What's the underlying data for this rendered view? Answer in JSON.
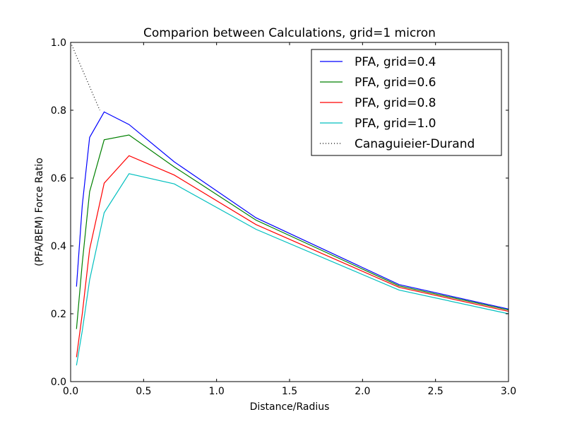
{
  "chart_data": {
    "type": "line",
    "title": "Comparion between Calculations, grid=1 micron",
    "xlabel": "Distance/Radius",
    "ylabel": "(PFA/BEM) Force Ratio",
    "xlim": [
      0.0,
      3.0
    ],
    "ylim": [
      0.0,
      1.0
    ],
    "xticks": [
      0.0,
      0.5,
      1.0,
      1.5,
      2.0,
      2.5,
      3.0
    ],
    "xtick_labels": [
      "0.0",
      "0.5",
      "1.0",
      "1.5",
      "2.0",
      "2.5",
      "3.0"
    ],
    "yticks": [
      0.0,
      0.2,
      0.4,
      0.6,
      0.8,
      1.0
    ],
    "ytick_labels": [
      "0.0",
      "0.2",
      "0.4",
      "0.6",
      "0.8",
      "1.0"
    ],
    "grid": false,
    "legend_position": "top-right",
    "series": [
      {
        "name": "PFA, grid=0.4",
        "color": "#0000ff",
        "style": "solid",
        "x": [
          0.04,
          0.08,
          0.13,
          0.23,
          0.4,
          0.71,
          1.27,
          2.25,
          3.0
        ],
        "y": [
          0.28,
          0.52,
          0.72,
          0.795,
          0.758,
          0.648,
          0.483,
          0.286,
          0.214
        ]
      },
      {
        "name": "PFA, grid=0.6",
        "color": "#008000",
        "style": "solid",
        "x": [
          0.04,
          0.08,
          0.13,
          0.23,
          0.4,
          0.71,
          1.27,
          2.25,
          3.0
        ],
        "y": [
          0.155,
          0.35,
          0.56,
          0.713,
          0.727,
          0.633,
          0.476,
          0.282,
          0.211
        ]
      },
      {
        "name": "PFA, grid=0.8",
        "color": "#ff0000",
        "style": "solid",
        "x": [
          0.04,
          0.08,
          0.13,
          0.23,
          0.4,
          0.71,
          1.27,
          2.25,
          3.0
        ],
        "y": [
          0.072,
          0.2,
          0.39,
          0.585,
          0.666,
          0.609,
          0.463,
          0.278,
          0.207
        ]
      },
      {
        "name": "PFA, grid=1.0",
        "color": "#00bfbf",
        "style": "solid",
        "x": [
          0.04,
          0.08,
          0.13,
          0.23,
          0.4,
          0.71,
          1.27,
          2.25,
          3.0
        ],
        "y": [
          0.048,
          0.15,
          0.3,
          0.498,
          0.613,
          0.583,
          0.449,
          0.27,
          0.2
        ]
      },
      {
        "name": "Canaguieier-Durand",
        "color": "#000000",
        "style": "dotted",
        "x": [
          0.0,
          0.05,
          0.1,
          0.15,
          0.2
        ],
        "y": [
          1.0,
          0.95,
          0.9,
          0.85,
          0.8
        ]
      }
    ]
  }
}
